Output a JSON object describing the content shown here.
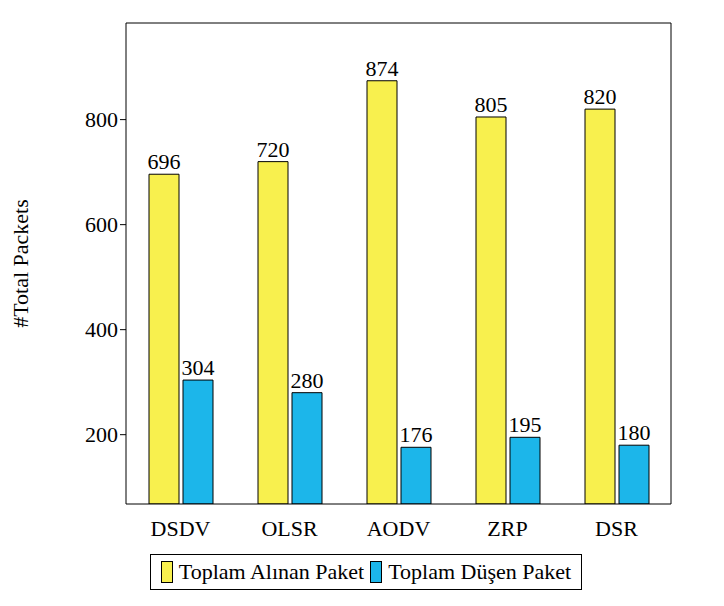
{
  "chart_data": {
    "type": "bar",
    "categories": [
      "DSDV",
      "OLSR",
      "AODV",
      "ZRP",
      "DSR"
    ],
    "series": [
      {
        "name": "Toplam Alınan Paket",
        "color": "#f8f04e",
        "values": [
          696,
          720,
          874,
          805,
          820
        ]
      },
      {
        "name": "Toplam Düşen Paket",
        "color": "#1cb6ea",
        "values": [
          304,
          280,
          176,
          195,
          180
        ]
      }
    ],
    "ylabel": "#Total Packets",
    "ylim": [
      68,
      984
    ],
    "yticks": [
      200,
      400,
      600,
      800
    ],
    "data_labels": true,
    "legend": "bottom",
    "grid": false
  }
}
